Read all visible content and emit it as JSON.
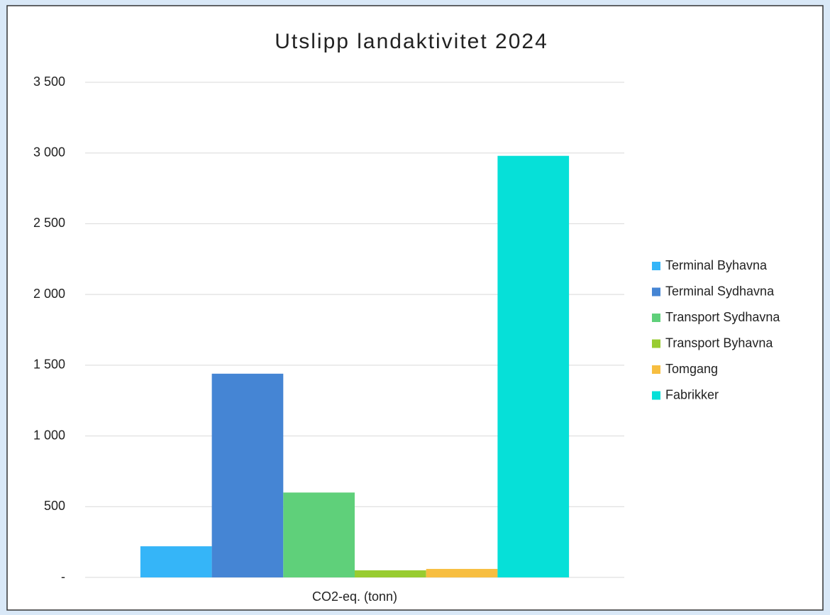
{
  "chart_data": {
    "type": "bar",
    "title": "Utslipp landaktivitet 2024",
    "categories": [
      "CO2-eq. (tonn)"
    ],
    "series": [
      {
        "name": "Terminal Byhavna",
        "color": "#35b5f8",
        "values": [
          220
        ]
      },
      {
        "name": "Terminal Sydhavna",
        "color": "#4585d4",
        "values": [
          1440
        ]
      },
      {
        "name": "Transport Sydhavna",
        "color": "#5fd07a",
        "values": [
          600
        ]
      },
      {
        "name": "Transport Byhavna",
        "color": "#98cc30",
        "values": [
          50
        ]
      },
      {
        "name": "Tomgang",
        "color": "#f7be40",
        "values": [
          60
        ]
      },
      {
        "name": "Fabrikker",
        "color": "#06e0d8",
        "values": [
          2980
        ]
      }
    ],
    "ylim": [
      0,
      3500
    ],
    "yticks": [
      {
        "value": 0,
        "label": "-"
      },
      500,
      {
        "value": 1000,
        "label": "1 000"
      },
      {
        "value": 1500,
        "label": "1 500"
      },
      {
        "value": 2000,
        "label": "2 000"
      },
      {
        "value": 2500,
        "label": "2 500"
      },
      {
        "value": 3000,
        "label": "3 000"
      },
      {
        "value": 3500,
        "label": "3 500"
      }
    ],
    "grid": true,
    "legend": "right"
  }
}
